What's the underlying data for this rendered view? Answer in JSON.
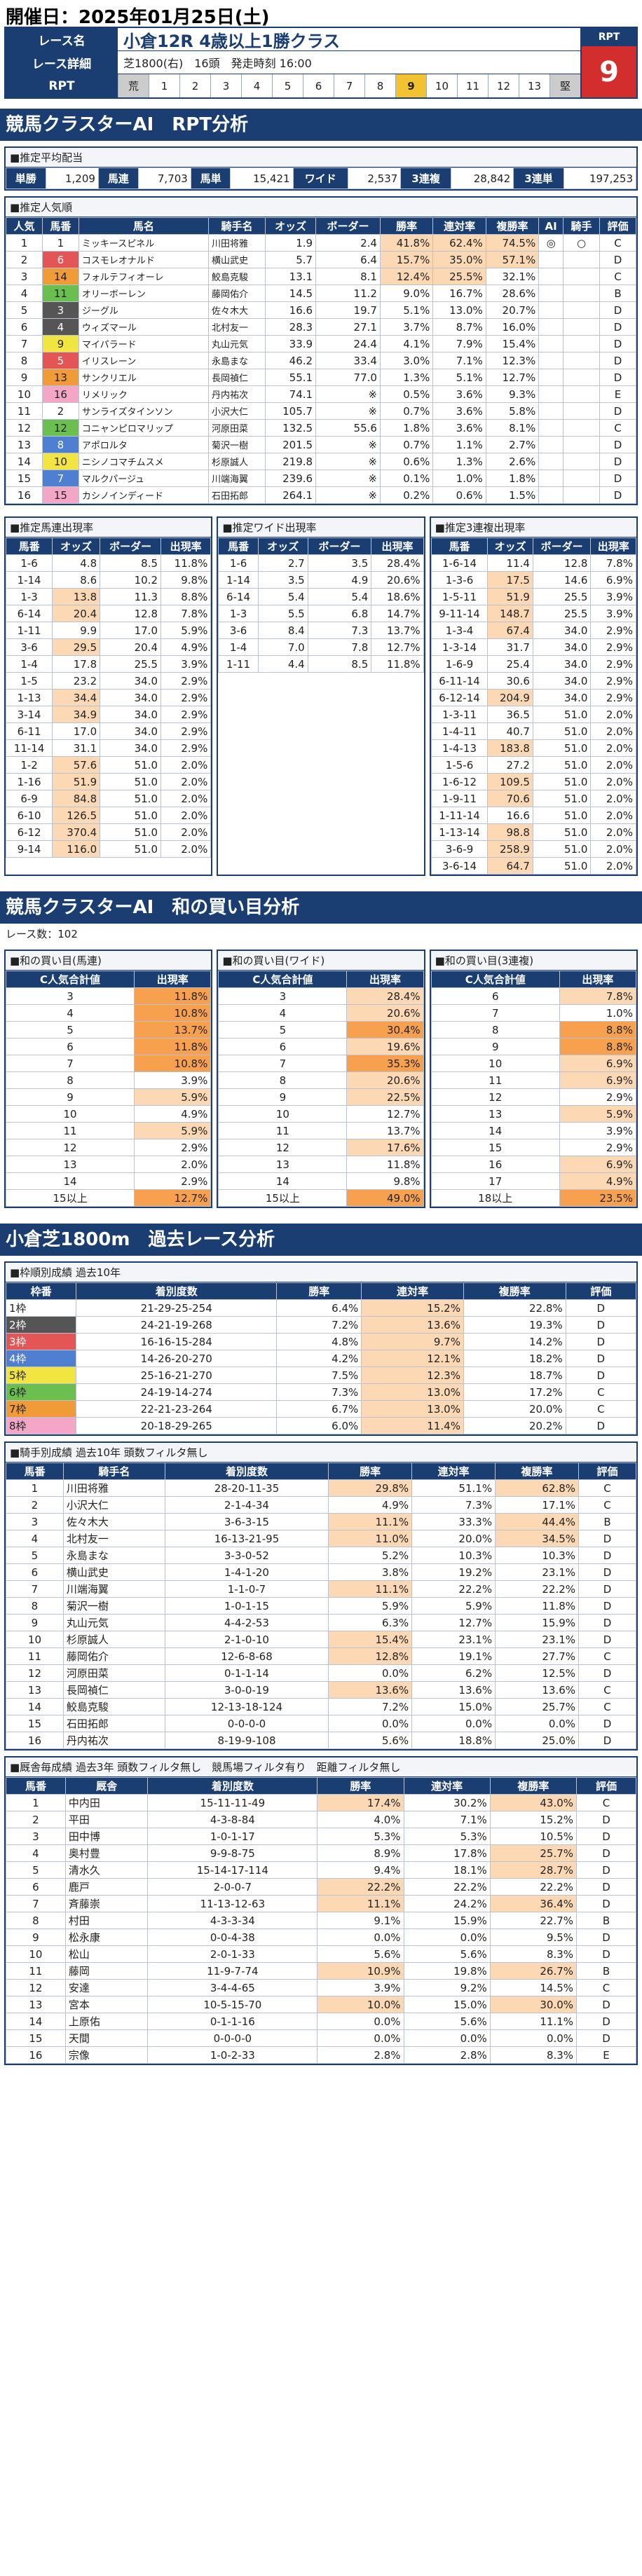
{
  "header": {
    "date": "開催日：2025年01月25日(土)",
    "race_label": "レース名",
    "race_name": "小倉12R 4歳以上1勝クラス",
    "detail_label": "レース詳細",
    "detail": "芝1800(右)　16頭　発走時刻 16:00",
    "rpt_label": "RPT",
    "rpt_scale": [
      "荒",
      "1",
      "2",
      "3",
      "4",
      "5",
      "6",
      "7",
      "8",
      "9",
      "10",
      "11",
      "12",
      "13",
      "堅"
    ],
    "rpt_value": "9"
  },
  "s1": {
    "title": "競馬クラスターAI　RPT分析",
    "pay_title": "■推定平均配当",
    "pay": [
      [
        "単勝",
        "1,209"
      ],
      [
        "馬連",
        "7,703"
      ],
      [
        "馬単",
        "15,421"
      ],
      [
        "ワイド",
        "2,537"
      ],
      [
        "3連複",
        "28,842"
      ],
      [
        "3連単",
        "197,253"
      ]
    ],
    "pop_title": "■推定人気順",
    "pop_head": [
      "人気",
      "馬番",
      "馬名",
      "騎手名",
      "オッズ",
      "ボーダー",
      "勝率",
      "連対率",
      "複勝率",
      "AI",
      "騎手",
      "評価"
    ],
    "pop_rows": [
      [
        "1",
        "1",
        "ミッキースピネル",
        "川田将雅",
        "1.9",
        "2.4",
        "41.8%",
        "62.4%",
        "74.5%",
        "◎",
        "○",
        "C"
      ],
      [
        "2",
        "6",
        "コスモレオナルド",
        "横山武史",
        "5.7",
        "6.4",
        "15.7%",
        "35.0%",
        "57.1%",
        "",
        "",
        "D"
      ],
      [
        "3",
        "14",
        "フォルテフィオーレ",
        "鮫島克駿",
        "13.1",
        "8.1",
        "12.4%",
        "25.5%",
        "32.1%",
        "",
        "",
        "C"
      ],
      [
        "4",
        "11",
        "オリーボーレン",
        "藤岡佑介",
        "14.5",
        "11.2",
        "9.0%",
        "16.7%",
        "28.6%",
        "",
        "",
        "B"
      ],
      [
        "5",
        "3",
        "ジーグル",
        "佐々木大",
        "16.6",
        "19.7",
        "5.1%",
        "13.0%",
        "20.7%",
        "",
        "",
        "D"
      ],
      [
        "6",
        "4",
        "ウィズマール",
        "北村友一",
        "28.3",
        "27.1",
        "3.7%",
        "8.7%",
        "16.0%",
        "",
        "",
        "D"
      ],
      [
        "7",
        "9",
        "マイパラード",
        "丸山元気",
        "33.9",
        "24.4",
        "4.1%",
        "7.9%",
        "15.4%",
        "",
        "",
        "D"
      ],
      [
        "8",
        "5",
        "イリスレーン",
        "永島まな",
        "46.2",
        "33.4",
        "3.0%",
        "7.1%",
        "12.3%",
        "",
        "",
        "D"
      ],
      [
        "9",
        "13",
        "サンクリエル",
        "長岡禎仁",
        "55.1",
        "77.0",
        "1.3%",
        "5.1%",
        "12.7%",
        "",
        "",
        "D"
      ],
      [
        "10",
        "16",
        "リメリック",
        "丹内祐次",
        "74.1",
        "※",
        "0.5%",
        "3.6%",
        "9.3%",
        "",
        "",
        "E"
      ],
      [
        "11",
        "2",
        "サンライズタインソン",
        "小沢大仁",
        "105.7",
        "※",
        "0.7%",
        "3.6%",
        "5.8%",
        "",
        "",
        "D"
      ],
      [
        "12",
        "12",
        "コニャンピロマリップ",
        "河原田菜",
        "132.5",
        "55.6",
        "1.8%",
        "3.6%",
        "8.1%",
        "",
        "",
        "C"
      ],
      [
        "13",
        "8",
        "アポロルタ",
        "菊沢一樹",
        "201.5",
        "※",
        "0.7%",
        "1.1%",
        "2.7%",
        "",
        "",
        "D"
      ],
      [
        "14",
        "10",
        "ニシノコマチムスメ",
        "杉原誠人",
        "219.8",
        "※",
        "0.6%",
        "1.3%",
        "2.6%",
        "",
        "",
        "D"
      ],
      [
        "15",
        "7",
        "マルクパージュ",
        "川端海翼",
        "239.6",
        "※",
        "0.1%",
        "1.0%",
        "1.8%",
        "",
        "",
        "D"
      ],
      [
        "16",
        "15",
        "カシノインディード",
        "石田拓郎",
        "264.1",
        "※",
        "0.2%",
        "0.6%",
        "1.5%",
        "",
        "",
        "D"
      ]
    ],
    "umaren_title": "■推定馬連出現率",
    "umaren_head": [
      "馬番",
      "オッズ",
      "ボーダー",
      "出現率"
    ],
    "umaren": [
      [
        "1-6",
        "4.8",
        "8.5",
        "11.8%"
      ],
      [
        "1-14",
        "8.6",
        "10.2",
        "9.8%"
      ],
      [
        "1-3",
        "13.8",
        "11.3",
        "8.8%"
      ],
      [
        "6-14",
        "20.4",
        "12.8",
        "7.8%"
      ],
      [
        "1-11",
        "9.9",
        "17.0",
        "5.9%"
      ],
      [
        "3-6",
        "29.5",
        "20.4",
        "4.9%"
      ],
      [
        "1-4",
        "17.8",
        "25.5",
        "3.9%"
      ],
      [
        "1-5",
        "23.2",
        "34.0",
        "2.9%"
      ],
      [
        "1-13",
        "34.4",
        "34.0",
        "2.9%"
      ],
      [
        "3-14",
        "34.9",
        "34.0",
        "2.9%"
      ],
      [
        "6-11",
        "17.0",
        "34.0",
        "2.9%"
      ],
      [
        "11-14",
        "31.1",
        "34.0",
        "2.9%"
      ],
      [
        "1-2",
        "57.6",
        "51.0",
        "2.0%"
      ],
      [
        "1-16",
        "51.9",
        "51.0",
        "2.0%"
      ],
      [
        "6-9",
        "84.8",
        "51.0",
        "2.0%"
      ],
      [
        "6-10",
        "126.5",
        "51.0",
        "2.0%"
      ],
      [
        "6-12",
        "370.4",
        "51.0",
        "2.0%"
      ],
      [
        "9-14",
        "116.0",
        "51.0",
        "2.0%"
      ]
    ],
    "wide_title": "■推定ワイド出現率",
    "wide_head": [
      "馬番",
      "オッズ",
      "ボーダー",
      "出現率"
    ],
    "wide": [
      [
        "1-6",
        "2.7",
        "3.5",
        "28.4%"
      ],
      [
        "1-14",
        "3.5",
        "4.9",
        "20.6%"
      ],
      [
        "6-14",
        "5.4",
        "5.4",
        "18.6%"
      ],
      [
        "1-3",
        "5.5",
        "6.8",
        "14.7%"
      ],
      [
        "3-6",
        "8.4",
        "7.3",
        "13.7%"
      ],
      [
        "1-4",
        "7.0",
        "7.8",
        "12.7%"
      ],
      [
        "1-11",
        "4.4",
        "8.5",
        "11.8%"
      ]
    ],
    "tri_title": "■推定3連複出現率",
    "tri_head": [
      "馬番",
      "オッズ",
      "ボーダー",
      "出現率"
    ],
    "tri": [
      [
        "1-6-14",
        "11.4",
        "12.8",
        "7.8%"
      ],
      [
        "1-3-6",
        "17.5",
        "14.6",
        "6.9%"
      ],
      [
        "1-5-11",
        "51.9",
        "25.5",
        "3.9%"
      ],
      [
        "9-11-14",
        "148.7",
        "25.5",
        "3.9%"
      ],
      [
        "1-3-4",
        "67.4",
        "34.0",
        "2.9%"
      ],
      [
        "1-3-14",
        "31.7",
        "34.0",
        "2.9%"
      ],
      [
        "1-6-9",
        "25.4",
        "34.0",
        "2.9%"
      ],
      [
        "6-11-14",
        "30.6",
        "34.0",
        "2.9%"
      ],
      [
        "6-12-14",
        "204.9",
        "34.0",
        "2.9%"
      ],
      [
        "1-3-11",
        "36.5",
        "51.0",
        "2.0%"
      ],
      [
        "1-4-11",
        "40.7",
        "51.0",
        "2.0%"
      ],
      [
        "1-4-13",
        "183.8",
        "51.0",
        "2.0%"
      ],
      [
        "1-5-6",
        "27.2",
        "51.0",
        "2.0%"
      ],
      [
        "1-6-12",
        "109.5",
        "51.0",
        "2.0%"
      ],
      [
        "1-9-11",
        "70.6",
        "51.0",
        "2.0%"
      ],
      [
        "1-11-14",
        "16.6",
        "51.0",
        "2.0%"
      ],
      [
        "1-13-14",
        "98.8",
        "51.0",
        "2.0%"
      ],
      [
        "3-6-9",
        "258.9",
        "51.0",
        "2.0%"
      ],
      [
        "3-6-14",
        "64.7",
        "51.0",
        "2.0%"
      ]
    ]
  },
  "s2": {
    "title": "競馬クラスターAI　和の買い目分析",
    "races": "レース数：102",
    "umaren_title": "■和の買い目(馬連)",
    "wide_title": "■和の買い目(ワイド)",
    "tri_title": "■和の買い目(3連複)",
    "head": [
      "C人気合計値",
      "出現率"
    ],
    "umaren": [
      [
        "3",
        "11.8%"
      ],
      [
        "4",
        "10.8%"
      ],
      [
        "5",
        "13.7%"
      ],
      [
        "6",
        "11.8%"
      ],
      [
        "7",
        "10.8%"
      ],
      [
        "8",
        "3.9%"
      ],
      [
        "9",
        "5.9%"
      ],
      [
        "10",
        "4.9%"
      ],
      [
        "11",
        "5.9%"
      ],
      [
        "12",
        "2.9%"
      ],
      [
        "13",
        "2.0%"
      ],
      [
        "14",
        "2.9%"
      ],
      [
        "15以上",
        "12.7%"
      ]
    ],
    "wide": [
      [
        "3",
        "28.4%"
      ],
      [
        "4",
        "20.6%"
      ],
      [
        "5",
        "30.4%"
      ],
      [
        "6",
        "19.6%"
      ],
      [
        "7",
        "35.3%"
      ],
      [
        "8",
        "20.6%"
      ],
      [
        "9",
        "22.5%"
      ],
      [
        "10",
        "12.7%"
      ],
      [
        "11",
        "13.7%"
      ],
      [
        "12",
        "17.6%"
      ],
      [
        "13",
        "11.8%"
      ],
      [
        "14",
        "9.8%"
      ],
      [
        "15以上",
        "49.0%"
      ]
    ],
    "tri": [
      [
        "6",
        "7.8%"
      ],
      [
        "7",
        "1.0%"
      ],
      [
        "8",
        "8.8%"
      ],
      [
        "9",
        "8.8%"
      ],
      [
        "10",
        "6.9%"
      ],
      [
        "11",
        "6.9%"
      ],
      [
        "12",
        "2.9%"
      ],
      [
        "13",
        "5.9%"
      ],
      [
        "14",
        "3.9%"
      ],
      [
        "15",
        "2.9%"
      ],
      [
        "16",
        "6.9%"
      ],
      [
        "17",
        "4.9%"
      ],
      [
        "18以上",
        "23.5%"
      ]
    ]
  },
  "s3": {
    "title": "小倉芝1800m　過去レース分析",
    "waku_title": "■枠順別成績 過去10年",
    "waku_head": [
      "枠番",
      "着別度数",
      "勝率",
      "連対率",
      "複勝率",
      "評価"
    ],
    "waku": [
      [
        "1枠",
        "21-29-25-254",
        "6.4%",
        "15.2%",
        "22.8%",
        "D"
      ],
      [
        "2枠",
        "24-21-19-268",
        "7.2%",
        "13.6%",
        "19.3%",
        "D"
      ],
      [
        "3枠",
        "16-16-15-284",
        "4.8%",
        "9.7%",
        "14.2%",
        "D"
      ],
      [
        "4枠",
        "14-26-20-270",
        "4.2%",
        "12.1%",
        "18.2%",
        "D"
      ],
      [
        "5枠",
        "25-16-21-270",
        "7.5%",
        "12.3%",
        "18.7%",
        "D"
      ],
      [
        "6枠",
        "24-19-14-274",
        "7.3%",
        "13.0%",
        "17.2%",
        "C"
      ],
      [
        "7枠",
        "22-21-23-264",
        "6.7%",
        "13.0%",
        "20.0%",
        "C"
      ],
      [
        "8枠",
        "20-18-29-265",
        "6.0%",
        "11.4%",
        "20.2%",
        "D"
      ]
    ],
    "jockey_title": "■騎手別成績 過去10年 頭数フィルタ無し",
    "jockey_head": [
      "馬番",
      "騎手名",
      "着別度数",
      "勝率",
      "連対率",
      "複勝率",
      "評価"
    ],
    "jockey": [
      [
        "1",
        "川田将雅",
        "28-20-11-35",
        "29.8%",
        "51.1%",
        "62.8%",
        "C"
      ],
      [
        "2",
        "小沢大仁",
        "2-1-4-34",
        "4.9%",
        "7.3%",
        "17.1%",
        "C"
      ],
      [
        "3",
        "佐々木大",
        "3-6-3-15",
        "11.1%",
        "33.3%",
        "44.4%",
        "B"
      ],
      [
        "4",
        "北村友一",
        "16-13-21-95",
        "11.0%",
        "20.0%",
        "34.5%",
        "D"
      ],
      [
        "5",
        "永島まな",
        "3-3-0-52",
        "5.2%",
        "10.3%",
        "10.3%",
        "D"
      ],
      [
        "6",
        "横山武史",
        "1-4-1-20",
        "3.8%",
        "19.2%",
        "23.1%",
        "D"
      ],
      [
        "7",
        "川端海翼",
        "1-1-0-7",
        "11.1%",
        "22.2%",
        "22.2%",
        "D"
      ],
      [
        "8",
        "菊沢一樹",
        "1-0-1-15",
        "5.9%",
        "5.9%",
        "11.8%",
        "D"
      ],
      [
        "9",
        "丸山元気",
        "4-4-2-53",
        "6.3%",
        "12.7%",
        "15.9%",
        "D"
      ],
      [
        "10",
        "杉原誠人",
        "2-1-0-10",
        "15.4%",
        "23.1%",
        "23.1%",
        "D"
      ],
      [
        "11",
        "藤岡佑介",
        "12-6-8-68",
        "12.8%",
        "19.1%",
        "27.7%",
        "C"
      ],
      [
        "12",
        "河原田菜",
        "0-1-1-14",
        "0.0%",
        "6.2%",
        "12.5%",
        "D"
      ],
      [
        "13",
        "長岡禎仁",
        "3-0-0-19",
        "13.6%",
        "13.6%",
        "13.6%",
        "C"
      ],
      [
        "14",
        "鮫島克駿",
        "12-13-18-124",
        "7.2%",
        "15.0%",
        "25.7%",
        "C"
      ],
      [
        "15",
        "石田拓郎",
        "0-0-0-0",
        "0.0%",
        "0.0%",
        "0.0%",
        "D"
      ],
      [
        "16",
        "丹内祐次",
        "8-19-9-108",
        "5.6%",
        "18.8%",
        "25.0%",
        "D"
      ]
    ],
    "trainer_title": "■厩舎毎成績 過去3年 頭数フィルタ無し　競馬場フィルタ有り　距離フィルタ無し",
    "trainer_head": [
      "馬番",
      "厩舎",
      "着別度数",
      "勝率",
      "連対率",
      "複勝率",
      "評価"
    ],
    "trainer": [
      [
        "1",
        "中内田",
        "15-11-11-49",
        "17.4%",
        "30.2%",
        "43.0%",
        "C"
      ],
      [
        "2",
        "平田",
        "4-3-8-84",
        "4.0%",
        "7.1%",
        "15.2%",
        "D"
      ],
      [
        "3",
        "田中博",
        "1-0-1-17",
        "5.3%",
        "5.3%",
        "10.5%",
        "D"
      ],
      [
        "4",
        "奥村豊",
        "9-9-8-75",
        "8.9%",
        "17.8%",
        "25.7%",
        "D"
      ],
      [
        "5",
        "清水久",
        "15-14-17-114",
        "9.4%",
        "18.1%",
        "28.7%",
        "D"
      ],
      [
        "6",
        "鹿戸",
        "2-0-0-7",
        "22.2%",
        "22.2%",
        "22.2%",
        "D"
      ],
      [
        "7",
        "斉藤崇",
        "11-13-12-63",
        "11.1%",
        "24.2%",
        "36.4%",
        "D"
      ],
      [
        "8",
        "村田",
        "4-3-3-34",
        "9.1%",
        "15.9%",
        "22.7%",
        "B"
      ],
      [
        "9",
        "松永康",
        "0-0-4-38",
        "0.0%",
        "0.0%",
        "9.5%",
        "D"
      ],
      [
        "10",
        "松山",
        "2-0-1-33",
        "5.6%",
        "5.6%",
        "8.3%",
        "D"
      ],
      [
        "11",
        "藤岡",
        "11-9-7-74",
        "10.9%",
        "19.8%",
        "26.7%",
        "B"
      ],
      [
        "12",
        "安達",
        "3-4-4-65",
        "3.9%",
        "9.2%",
        "14.5%",
        "C"
      ],
      [
        "13",
        "宮本",
        "10-5-15-70",
        "10.0%",
        "15.0%",
        "30.0%",
        "D"
      ],
      [
        "14",
        "上原佑",
        "0-1-1-16",
        "0.0%",
        "5.6%",
        "11.1%",
        "D"
      ],
      [
        "15",
        "天間",
        "0-0-0-0",
        "0.0%",
        "0.0%",
        "0.0%",
        "D"
      ],
      [
        "16",
        "宗像",
        "1-0-2-33",
        "2.8%",
        "2.8%",
        "8.3%",
        "E"
      ]
    ]
  }
}
